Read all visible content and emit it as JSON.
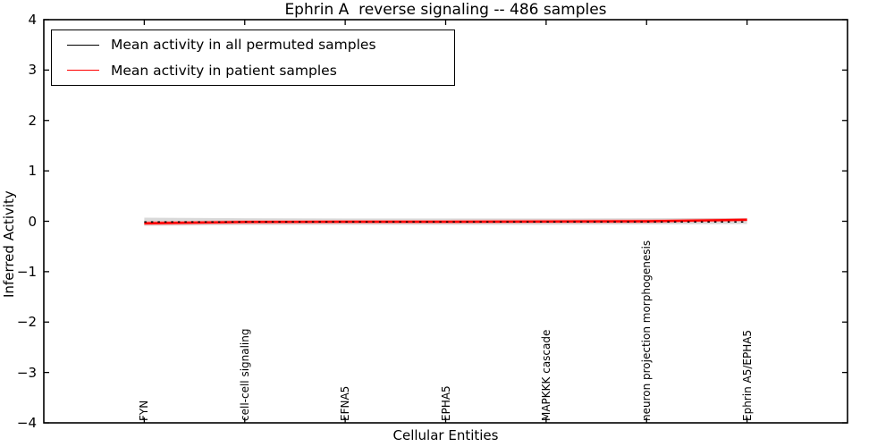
{
  "chart_data": {
    "type": "line",
    "title": "Ephrin A  reverse signaling -- 486 samples",
    "xlabel": "Cellular Entities",
    "ylabel": "Inferred Activity",
    "ylim": [
      -4,
      4
    ],
    "yticks": [
      -4,
      -3,
      -2,
      -1,
      0,
      1,
      2,
      3,
      4
    ],
    "grid": false,
    "legend_position": "upper left",
    "categories": [
      "FYN",
      "cell-cell signaling",
      "EFNA5",
      "EPHA5",
      "MAPKKK cascade",
      "neuron projection morphogenesis",
      "Ephrin A5/EPHA5"
    ],
    "series": [
      {
        "name": "Mean activity in all permuted samples",
        "color": "#000000",
        "style": "dotted-over-plot",
        "values": [
          -0.01,
          -0.01,
          -0.01,
          -0.01,
          -0.01,
          -0.01,
          -0.01
        ]
      },
      {
        "name": "Mean activity in patient samples",
        "color": "#ff0000",
        "style": "solid",
        "values": [
          -0.04,
          -0.015,
          -0.01,
          -0.01,
          -0.005,
          0.0,
          0.03
        ]
      }
    ],
    "bands": [
      {
        "name": "permuted-std-band",
        "color": "#d9d9d9",
        "upper": [
          0.07,
          0.06,
          0.055,
          0.055,
          0.055,
          0.06,
          0.065
        ],
        "lower": [
          -0.09,
          -0.075,
          -0.07,
          -0.07,
          -0.07,
          -0.065,
          -0.055
        ]
      },
      {
        "name": "patient-std-lines",
        "color": "#f2a0a0",
        "upper": [
          -0.015,
          0.01,
          0.015,
          0.015,
          0.02,
          0.025,
          0.05
        ],
        "lower": [
          -0.065,
          -0.04,
          -0.035,
          -0.035,
          -0.03,
          -0.025,
          0.01
        ]
      }
    ]
  }
}
